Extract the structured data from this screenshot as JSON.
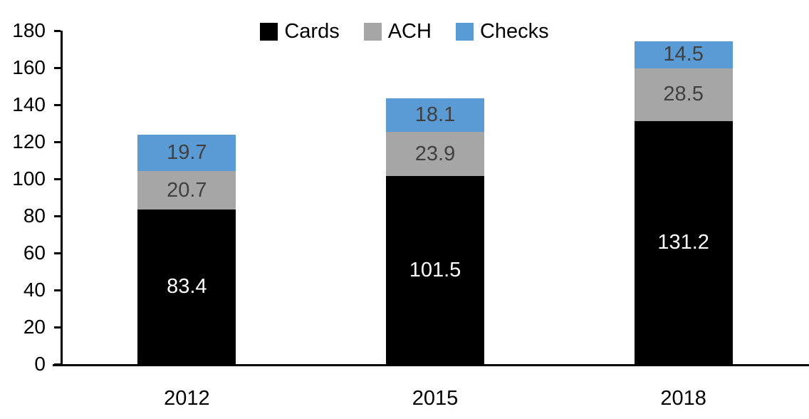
{
  "chart_data": {
    "type": "bar",
    "stacked": true,
    "title": "",
    "xlabel": "",
    "ylabel": "",
    "categories": [
      "2012",
      "2015",
      "2018"
    ],
    "series": [
      {
        "name": "Cards",
        "color": "#000000",
        "label_color": "#ffffff",
        "values": [
          83.4,
          101.5,
          131.2
        ]
      },
      {
        "name": "ACH",
        "color": "#a6a6a6",
        "label_color": "#404040",
        "values": [
          20.7,
          23.9,
          28.5
        ]
      },
      {
        "name": "Checks",
        "color": "#5b9bd5",
        "label_color": "#404040",
        "values": [
          19.7,
          18.1,
          14.5
        ]
      }
    ],
    "totals": [
      123.8,
      143.5,
      174.2
    ],
    "ylim": [
      0,
      180
    ],
    "yticks": [
      0,
      20,
      40,
      60,
      80,
      100,
      120,
      140,
      160,
      180
    ],
    "grid": false,
    "legend_position": "top-center",
    "axis_color": "#000000",
    "background_color": "#ffffff"
  }
}
